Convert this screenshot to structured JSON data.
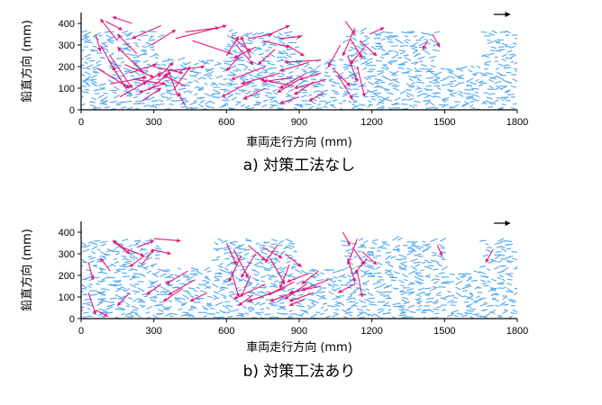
{
  "colors": {
    "background_field": "#4ea6f0",
    "large_vectors": "#e6177a",
    "axis": "#000000"
  },
  "chart_data": [
    {
      "type": "vector-field",
      "caption": "a) 対策工法なし",
      "xlabel": "車両走行方向 (mm)",
      "ylabel": "鉛直方向 (mm)",
      "xlim": [
        0,
        1800
      ],
      "ylim": [
        0,
        450
      ],
      "x_ticks": [
        "0",
        "300",
        "600",
        "900",
        "1200",
        "1500",
        "1800"
      ],
      "y_ticks": [
        "0",
        "100",
        "200",
        "300",
        "400"
      ],
      "surface_profile": [
        [
          0,
          370
        ],
        [
          310,
          370
        ],
        [
          310,
          230
        ],
        [
          580,
          230
        ],
        [
          580,
          370
        ],
        [
          880,
          370
        ],
        [
          880,
          230
        ],
        [
          1080,
          230
        ],
        [
          1080,
          370
        ],
        [
          1480,
          370
        ],
        [
          1480,
          200
        ],
        [
          1680,
          200
        ],
        [
          1680,
          370
        ],
        [
          1800,
          370
        ]
      ],
      "reference_arrow": true,
      "vectors": [
        {
          "x": 60,
          "y": 350,
          "dx": 20,
          "dy": -80
        },
        {
          "x": 80,
          "y": 300,
          "dx": 60,
          "dy": -120
        },
        {
          "x": 120,
          "y": 250,
          "dx": 90,
          "dy": -150
        },
        {
          "x": 150,
          "y": 320,
          "dx": -70,
          "dy": 100
        },
        {
          "x": 180,
          "y": 210,
          "dx": 120,
          "dy": -60
        },
        {
          "x": 200,
          "y": 170,
          "dx": 110,
          "dy": 40
        },
        {
          "x": 220,
          "y": 140,
          "dx": 130,
          "dy": -20
        },
        {
          "x": 240,
          "y": 110,
          "dx": 90,
          "dy": 60
        },
        {
          "x": 260,
          "y": 170,
          "dx": -110,
          "dy": 120
        },
        {
          "x": 280,
          "y": 90,
          "dx": 80,
          "dy": 80
        },
        {
          "x": 300,
          "y": 200,
          "dx": 120,
          "dy": -30
        },
        {
          "x": 320,
          "y": 150,
          "dx": 60,
          "dy": 70
        },
        {
          "x": 340,
          "y": 120,
          "dx": -100,
          "dy": -40
        },
        {
          "x": 360,
          "y": 180,
          "dx": 150,
          "dy": 20
        },
        {
          "x": 380,
          "y": 90,
          "dx": 70,
          "dy": 110
        },
        {
          "x": 400,
          "y": 60,
          "dx": -40,
          "dy": 120
        },
        {
          "x": 160,
          "y": 60,
          "dx": 110,
          "dy": 70
        },
        {
          "x": 250,
          "y": 40,
          "dx": 80,
          "dy": 60
        },
        {
          "x": 430,
          "y": 110,
          "dx": -90,
          "dy": 50
        },
        {
          "x": 120,
          "y": 120,
          "dx": 150,
          "dy": 30
        },
        {
          "x": 190,
          "y": 90,
          "dx": -60,
          "dy": 110
        },
        {
          "x": 70,
          "y": 190,
          "dx": 130,
          "dy": -90
        },
        {
          "x": 230,
          "y": 260,
          "dx": -80,
          "dy": 90
        },
        {
          "x": 290,
          "y": 300,
          "dx": 100,
          "dy": 70
        },
        {
          "x": 330,
          "y": 390,
          "dx": -120,
          "dy": -60
        },
        {
          "x": 210,
          "y": 400,
          "dx": -80,
          "dy": 30
        },
        {
          "x": 100,
          "y": 410,
          "dx": 70,
          "dy": -40
        },
        {
          "x": 430,
          "y": 360,
          "dx": 140,
          "dy": 20
        },
        {
          "x": 460,
          "y": 320,
          "dx": 160,
          "dy": -60
        },
        {
          "x": 390,
          "y": 330,
          "dx": 210,
          "dy": 60
        },
        {
          "x": 620,
          "y": 340,
          "dx": 80,
          "dy": -70
        },
        {
          "x": 640,
          "y": 300,
          "dx": 70,
          "dy": -90
        },
        {
          "x": 660,
          "y": 260,
          "dx": -60,
          "dy": -80
        },
        {
          "x": 690,
          "y": 330,
          "dx": 100,
          "dy": 20
        },
        {
          "x": 720,
          "y": 290,
          "dx": -90,
          "dy": -50
        },
        {
          "x": 750,
          "y": 320,
          "dx": 110,
          "dy": -30
        },
        {
          "x": 780,
          "y": 350,
          "dx": 80,
          "dy": 40
        },
        {
          "x": 800,
          "y": 280,
          "dx": -70,
          "dy": -70
        },
        {
          "x": 820,
          "y": 330,
          "dx": 90,
          "dy": 10
        },
        {
          "x": 850,
          "y": 300,
          "dx": 70,
          "dy": -50
        },
        {
          "x": 600,
          "y": 250,
          "dx": 50,
          "dy": 90
        },
        {
          "x": 700,
          "y": 240,
          "dx": -40,
          "dy": 100
        },
        {
          "x": 760,
          "y": 200,
          "dx": -140,
          "dy": -60
        },
        {
          "x": 820,
          "y": 170,
          "dx": -160,
          "dy": -50
        },
        {
          "x": 870,
          "y": 150,
          "dx": -120,
          "dy": -20
        },
        {
          "x": 880,
          "y": 110,
          "dx": -140,
          "dy": 30
        },
        {
          "x": 900,
          "y": 140,
          "dx": -90,
          "dy": -60
        },
        {
          "x": 930,
          "y": 170,
          "dx": -110,
          "dy": -70
        },
        {
          "x": 960,
          "y": 130,
          "dx": -80,
          "dy": -60
        },
        {
          "x": 990,
          "y": 170,
          "dx": -90,
          "dy": -30
        },
        {
          "x": 1010,
          "y": 140,
          "dx": -130,
          "dy": -40
        },
        {
          "x": 1040,
          "y": 190,
          "dx": 70,
          "dy": -80
        },
        {
          "x": 1060,
          "y": 160,
          "dx": 60,
          "dy": -110
        },
        {
          "x": 940,
          "y": 220,
          "dx": -120,
          "dy": -40
        },
        {
          "x": 990,
          "y": 230,
          "dx": -150,
          "dy": -10
        },
        {
          "x": 700,
          "y": 130,
          "dx": -120,
          "dy": -70
        },
        {
          "x": 760,
          "y": 100,
          "dx": -90,
          "dy": -50
        },
        {
          "x": 1100,
          "y": 250,
          "dx": 40,
          "dy": -120
        },
        {
          "x": 1110,
          "y": 330,
          "dx": 50,
          "dy": -90
        },
        {
          "x": 1130,
          "y": 380,
          "dx": -50,
          "dy": -130
        },
        {
          "x": 1150,
          "y": 320,
          "dx": 70,
          "dy": -70
        },
        {
          "x": 1170,
          "y": 290,
          "dx": -60,
          "dy": -80
        },
        {
          "x": 1190,
          "y": 350,
          "dx": 60,
          "dy": 30
        },
        {
          "x": 1090,
          "y": 410,
          "dx": 40,
          "dy": -60
        },
        {
          "x": 1070,
          "y": 300,
          "dx": -50,
          "dy": -100
        },
        {
          "x": 1140,
          "y": 200,
          "dx": 30,
          "dy": -140
        },
        {
          "x": 1450,
          "y": 350,
          "dx": 30,
          "dy": -60
        },
        {
          "x": 1430,
          "y": 320,
          "dx": -20,
          "dy": -40
        },
        {
          "x": 1000,
          "y": 80,
          "dx": -60,
          "dy": -40
        },
        {
          "x": 430,
          "y": 20,
          "dx": -30,
          "dy": 60
        },
        {
          "x": 900,
          "y": 60,
          "dx": -80,
          "dy": -30
        }
      ]
    },
    {
      "type": "vector-field",
      "caption": "b) 対策工法あり",
      "xlabel": "車両走行方向 (mm)",
      "ylabel": "鉛直方向 (mm)",
      "xlim": [
        0,
        1800
      ],
      "ylim": [
        0,
        450
      ],
      "x_ticks": [
        "0",
        "300",
        "600",
        "900",
        "1200",
        "1500",
        "1800"
      ],
      "y_ticks": [
        "0",
        "100",
        "200",
        "300",
        "400"
      ],
      "surface_profile": [
        [
          0,
          360
        ],
        [
          320,
          360
        ],
        [
          320,
          240
        ],
        [
          560,
          240
        ],
        [
          560,
          370
        ],
        [
          880,
          370
        ],
        [
          880,
          240
        ],
        [
          1080,
          240
        ],
        [
          1080,
          360
        ],
        [
          1500,
          360
        ],
        [
          1500,
          210
        ],
        [
          1660,
          210
        ],
        [
          1660,
          360
        ],
        [
          1800,
          360
        ]
      ],
      "reference_arrow": true,
      "vectors": [
        {
          "x": 140,
          "y": 360,
          "dx": 60,
          "dy": -60
        },
        {
          "x": 170,
          "y": 330,
          "dx": 90,
          "dy": -40
        },
        {
          "x": 200,
          "y": 300,
          "dx": -70,
          "dy": 60
        },
        {
          "x": 230,
          "y": 330,
          "dx": 70,
          "dy": 30
        },
        {
          "x": 260,
          "y": 290,
          "dx": -60,
          "dy": -50
        },
        {
          "x": 290,
          "y": 320,
          "dx": 80,
          "dy": -20
        },
        {
          "x": 250,
          "y": 250,
          "dx": 50,
          "dy": 70
        },
        {
          "x": 300,
          "y": 370,
          "dx": 110,
          "dy": -10
        },
        {
          "x": 120,
          "y": 220,
          "dx": -40,
          "dy": 60
        },
        {
          "x": 30,
          "y": 260,
          "dx": 20,
          "dy": -80
        },
        {
          "x": 30,
          "y": 120,
          "dx": 30,
          "dy": -100
        },
        {
          "x": 60,
          "y": 40,
          "dx": 50,
          "dy": -30
        },
        {
          "x": 200,
          "y": 120,
          "dx": -50,
          "dy": -60
        },
        {
          "x": 440,
          "y": 220,
          "dx": -90,
          "dy": -60
        },
        {
          "x": 470,
          "y": 180,
          "dx": -110,
          "dy": -70
        },
        {
          "x": 420,
          "y": 140,
          "dx": -80,
          "dy": -60
        },
        {
          "x": 330,
          "y": 160,
          "dx": -60,
          "dy": -50
        },
        {
          "x": 520,
          "y": 120,
          "dx": -70,
          "dy": -40
        },
        {
          "x": 600,
          "y": 350,
          "dx": 40,
          "dy": -100
        },
        {
          "x": 630,
          "y": 320,
          "dx": 60,
          "dy": -130
        },
        {
          "x": 660,
          "y": 290,
          "dx": -50,
          "dy": -120
        },
        {
          "x": 690,
          "y": 340,
          "dx": 70,
          "dy": -70
        },
        {
          "x": 720,
          "y": 300,
          "dx": -60,
          "dy": -110
        },
        {
          "x": 750,
          "y": 330,
          "dx": 80,
          "dy": -50
        },
        {
          "x": 780,
          "y": 280,
          "dx": 60,
          "dy": -120
        },
        {
          "x": 810,
          "y": 340,
          "dx": -50,
          "dy": -80
        },
        {
          "x": 840,
          "y": 300,
          "dx": 70,
          "dy": -60
        },
        {
          "x": 860,
          "y": 250,
          "dx": -40,
          "dy": -110
        },
        {
          "x": 620,
          "y": 220,
          "dx": 30,
          "dy": -120
        },
        {
          "x": 700,
          "y": 200,
          "dx": -40,
          "dy": -100
        },
        {
          "x": 760,
          "y": 160,
          "dx": -130,
          "dy": -70
        },
        {
          "x": 840,
          "y": 140,
          "dx": -150,
          "dy": -60
        },
        {
          "x": 880,
          "y": 170,
          "dx": -110,
          "dy": -60
        },
        {
          "x": 900,
          "y": 130,
          "dx": -120,
          "dy": -50
        },
        {
          "x": 930,
          "y": 160,
          "dx": -90,
          "dy": -70
        },
        {
          "x": 960,
          "y": 120,
          "dx": -100,
          "dy": -40
        },
        {
          "x": 990,
          "y": 150,
          "dx": -130,
          "dy": -30
        },
        {
          "x": 1020,
          "y": 180,
          "dx": -110,
          "dy": -50
        },
        {
          "x": 940,
          "y": 210,
          "dx": -90,
          "dy": -40
        },
        {
          "x": 980,
          "y": 220,
          "dx": -70,
          "dy": -60
        },
        {
          "x": 710,
          "y": 110,
          "dx": -60,
          "dy": -50
        },
        {
          "x": 1100,
          "y": 280,
          "dx": 30,
          "dy": -110
        },
        {
          "x": 1120,
          "y": 330,
          "dx": 50,
          "dy": -80
        },
        {
          "x": 1140,
          "y": 370,
          "dx": -40,
          "dy": -120
        },
        {
          "x": 1160,
          "y": 310,
          "dx": 60,
          "dy": -60
        },
        {
          "x": 1180,
          "y": 280,
          "dx": -50,
          "dy": -70
        },
        {
          "x": 1080,
          "y": 400,
          "dx": 30,
          "dy": -60
        },
        {
          "x": 1140,
          "y": 220,
          "dx": 20,
          "dy": -120
        },
        {
          "x": 1470,
          "y": 340,
          "dx": 20,
          "dy": -50
        },
        {
          "x": 1700,
          "y": 320,
          "dx": -30,
          "dy": -60
        },
        {
          "x": 1130,
          "y": 160,
          "dx": -70,
          "dy": -40
        },
        {
          "x": 920,
          "y": 90,
          "dx": -60,
          "dy": -30
        }
      ]
    }
  ],
  "panels": [
    {
      "caption": "a) 対策工法なし",
      "xlabel": "車両走行方向 (mm)",
      "ylabel": "鉛直方向 (mm)"
    },
    {
      "caption": "b) 対策工法あり",
      "xlabel": "車両走行方向 (mm)",
      "ylabel": "鉛直方向 (mm)"
    }
  ]
}
